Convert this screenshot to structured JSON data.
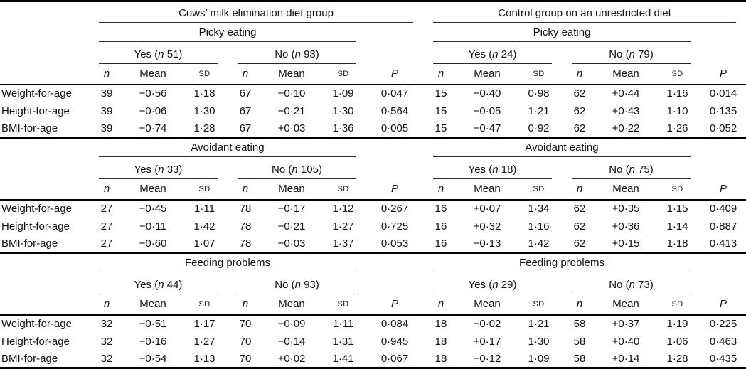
{
  "table": {
    "groups": [
      {
        "title": "Cows’ milk elimination diet group"
      },
      {
        "title": "Control group on an unrestricted diet"
      }
    ],
    "col_headers": {
      "n": "n",
      "mean": "Mean",
      "sd": "SD",
      "p": "P"
    },
    "sections": [
      {
        "title_left": "Picky eating",
        "title_right": "Picky eating",
        "left": {
          "yes": {
            "word": "Yes",
            "count": "51"
          },
          "no": {
            "word": "No",
            "count": "93"
          }
        },
        "right": {
          "yes": {
            "word": "Yes",
            "count": "24"
          },
          "no": {
            "word": "No",
            "count": "79"
          }
        },
        "rows": [
          {
            "label": "Weight-for-age",
            "left": {
              "yes": {
                "n": "39",
                "mean": "−0·56",
                "sd": "1·18"
              },
              "no": {
                "n": "67",
                "mean": "−0·10",
                "sd": "1·09"
              },
              "p": "0·047"
            },
            "right": {
              "yes": {
                "n": "15",
                "mean": "−0·40",
                "sd": "0·98"
              },
              "no": {
                "n": "62",
                "mean": "+0·44",
                "sd": "1·16"
              },
              "p": "0·014"
            }
          },
          {
            "label": "Height-for-age",
            "left": {
              "yes": {
                "n": "39",
                "mean": "−0·06",
                "sd": "1·30"
              },
              "no": {
                "n": "67",
                "mean": "−0·21",
                "sd": "1·30"
              },
              "p": "0·564"
            },
            "right": {
              "yes": {
                "n": "15",
                "mean": "−0·05",
                "sd": "1·21"
              },
              "no": {
                "n": "62",
                "mean": "+0·43",
                "sd": "1·10"
              },
              "p": "0·135"
            }
          },
          {
            "label": "BMI-for-age",
            "left": {
              "yes": {
                "n": "39",
                "mean": "−0·74",
                "sd": "1·28"
              },
              "no": {
                "n": "67",
                "mean": "+0·03",
                "sd": "1·36"
              },
              "p": "0·005"
            },
            "right": {
              "yes": {
                "n": "15",
                "mean": "−0·47",
                "sd": "0·92"
              },
              "no": {
                "n": "62",
                "mean": "+0·22",
                "sd": "1·26"
              },
              "p": "0·052"
            }
          }
        ]
      },
      {
        "title_left": "Avoidant eating",
        "title_right": "Avoidant eating",
        "left": {
          "yes": {
            "word": "Yes",
            "count": "33"
          },
          "no": {
            "word": "No",
            "count": "105"
          }
        },
        "right": {
          "yes": {
            "word": "Yes",
            "count": "18"
          },
          "no": {
            "word": "No",
            "count": "75"
          }
        },
        "rows": [
          {
            "label": "Weight-for-age",
            "left": {
              "yes": {
                "n": "27",
                "mean": "−0·45",
                "sd": "1·11"
              },
              "no": {
                "n": "78",
                "mean": "−0·17",
                "sd": "1·12"
              },
              "p": "0·267"
            },
            "right": {
              "yes": {
                "n": "16",
                "mean": "+0·07",
                "sd": "1·34"
              },
              "no": {
                "n": "62",
                "mean": "+0·35",
                "sd": "1·15"
              },
              "p": "0·409"
            }
          },
          {
            "label": "Height-for-age",
            "left": {
              "yes": {
                "n": "27",
                "mean": "−0·11",
                "sd": "1·42"
              },
              "no": {
                "n": "78",
                "mean": "−0·21",
                "sd": "1·27"
              },
              "p": "0·725"
            },
            "right": {
              "yes": {
                "n": "16",
                "mean": "+0·32",
                "sd": "1·16"
              },
              "no": {
                "n": "62",
                "mean": "+0·36",
                "sd": "1·14"
              },
              "p": "0·887"
            }
          },
          {
            "label": "BMI-for-age",
            "left": {
              "yes": {
                "n": "27",
                "mean": "−0·60",
                "sd": "1·07"
              },
              "no": {
                "n": "78",
                "mean": "−0·03",
                "sd": "1·37"
              },
              "p": "0·053"
            },
            "right": {
              "yes": {
                "n": "16",
                "mean": "−0·13",
                "sd": "1·42"
              },
              "no": {
                "n": "62",
                "mean": "+0·15",
                "sd": "1·18"
              },
              "p": "0·413"
            }
          }
        ]
      },
      {
        "title_left": "Feeding problems",
        "title_right": "Feeding problems",
        "left": {
          "yes": {
            "word": "Yes",
            "count": "44"
          },
          "no": {
            "word": "No",
            "count": "93"
          }
        },
        "right": {
          "yes": {
            "word": "Yes",
            "count": "29"
          },
          "no": {
            "word": "No",
            "count": "73"
          }
        },
        "rows": [
          {
            "label": "Weight-for-age",
            "left": {
              "yes": {
                "n": "32",
                "mean": "−0·51",
                "sd": "1·17"
              },
              "no": {
                "n": "70",
                "mean": "−0·09",
                "sd": "1·11"
              },
              "p": "0·084"
            },
            "right": {
              "yes": {
                "n": "18",
                "mean": "−0·02",
                "sd": "1·21"
              },
              "no": {
                "n": "58",
                "mean": "+0·37",
                "sd": "1·19"
              },
              "p": "0·225"
            }
          },
          {
            "label": "Height-for-age",
            "left": {
              "yes": {
                "n": "32",
                "mean": "−0·16",
                "sd": "1·27"
              },
              "no": {
                "n": "70",
                "mean": "−0·14",
                "sd": "1·31"
              },
              "p": "0·945"
            },
            "right": {
              "yes": {
                "n": "18",
                "mean": "+0·17",
                "sd": "1·30"
              },
              "no": {
                "n": "58",
                "mean": "+0·40",
                "sd": "1·06"
              },
              "p": "0·463"
            }
          },
          {
            "label": "BMI-for-age",
            "left": {
              "yes": {
                "n": "32",
                "mean": "−0·54",
                "sd": "1·13"
              },
              "no": {
                "n": "70",
                "mean": "+0·02",
                "sd": "1·41"
              },
              "p": "0·067"
            },
            "right": {
              "yes": {
                "n": "18",
                "mean": "−0·12",
                "sd": "1·09"
              },
              "no": {
                "n": "58",
                "mean": "+0·14",
                "sd": "1·28"
              },
              "p": "0·435"
            }
          }
        ]
      }
    ]
  }
}
